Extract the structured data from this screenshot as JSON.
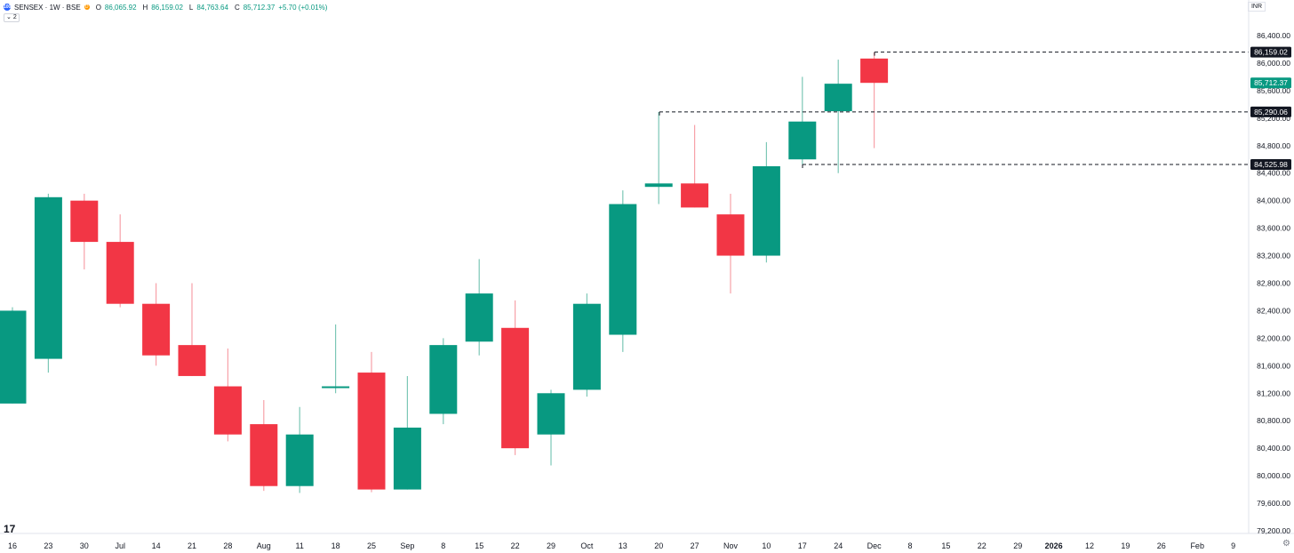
{
  "header": {
    "logo_text": "100",
    "symbol": "SENSEX · 1W · BSE",
    "badge": "D",
    "open_label": "O",
    "open": "86,065.92",
    "high_label": "H",
    "high": "86,159.02",
    "low_label": "L",
    "low": "84,763.64",
    "close_label": "C",
    "close": "85,712.37",
    "change": "+5.70 (+0.01%)",
    "indicator_count": "2",
    "currency": "INR"
  },
  "icons": [
    "tradingview-logo-icon",
    "settings-icon",
    "chevron-down-icon"
  ],
  "colors": {
    "up": "#089981",
    "down": "#f23645",
    "up_wick": "#7cc7b6",
    "down_wick": "#f7a1a8",
    "price_tag_dark": "#131722"
  },
  "chart_data": {
    "type": "candlestick",
    "title": "SENSEX · 1W · BSE",
    "ylim": [
      79200,
      86700
    ],
    "y_ticks": [
      "79,200.00",
      "79,600.00",
      "80,000.00",
      "80,400.00",
      "80,800.00",
      "81,200.00",
      "81,600.00",
      "82,000.00",
      "82,400.00",
      "82,800.00",
      "83,200.00",
      "83,600.00",
      "84,000.00",
      "84,400.00",
      "84,800.00",
      "85,200.00",
      "85,600.00",
      "86,000.00",
      "86,400.00"
    ],
    "x_ticks": [
      "16",
      "23",
      "30",
      "Jul",
      "14",
      "21",
      "28",
      "Aug",
      "11",
      "18",
      "25",
      "Sep",
      "8",
      "15",
      "22",
      "29",
      "Oct",
      "13",
      "20",
      "27",
      "Nov",
      "10",
      "17",
      "24",
      "Dec",
      "8",
      "15",
      "22",
      "29",
      "2026",
      "12",
      "19",
      "26",
      "Feb",
      "9"
    ],
    "candles": [
      {
        "o": 81050,
        "h": 82450,
        "l": 81050,
        "c": 82400
      },
      {
        "o": 81700,
        "h": 84100,
        "l": 81500,
        "c": 84050
      },
      {
        "o": 84000,
        "h": 84100,
        "l": 83000,
        "c": 83400
      },
      {
        "o": 83400,
        "h": 83800,
        "l": 82450,
        "c": 82500
      },
      {
        "o": 82500,
        "h": 82800,
        "l": 81600,
        "c": 81750
      },
      {
        "o": 81900,
        "h": 82800,
        "l": 81450,
        "c": 81450
      },
      {
        "o": 81300,
        "h": 81850,
        "l": 80500,
        "c": 80600
      },
      {
        "o": 80750,
        "h": 81100,
        "l": 79780,
        "c": 79850
      },
      {
        "o": 79850,
        "h": 81000,
        "l": 79750,
        "c": 80600
      },
      {
        "o": 81300,
        "h": 82200,
        "l": 81200,
        "c": 81300
      },
      {
        "o": 81500,
        "h": 81800,
        "l": 79760,
        "c": 79800
      },
      {
        "o": 79800,
        "h": 81450,
        "l": 79800,
        "c": 80700
      },
      {
        "o": 80900,
        "h": 82000,
        "l": 80750,
        "c": 81900
      },
      {
        "o": 81950,
        "h": 83150,
        "l": 81750,
        "c": 82650
      },
      {
        "o": 82150,
        "h": 82550,
        "l": 80300,
        "c": 80400
      },
      {
        "o": 80600,
        "h": 81250,
        "l": 80150,
        "c": 81200
      },
      {
        "o": 81250,
        "h": 82650,
        "l": 81150,
        "c": 82500
      },
      {
        "o": 82050,
        "h": 84150,
        "l": 81800,
        "c": 83950
      },
      {
        "o": 84200,
        "h": 85290.06,
        "l": 83950,
        "c": 84250
      },
      {
        "o": 84250,
        "h": 85100,
        "l": 83900,
        "c": 83900
      },
      {
        "o": 83800,
        "h": 84100,
        "l": 82650,
        "c": 83200
      },
      {
        "o": 83200,
        "h": 84850,
        "l": 83100,
        "c": 84500
      },
      {
        "o": 84600,
        "h": 85800,
        "l": 84525.98,
        "c": 85150
      },
      {
        "o": 85300,
        "h": 86050,
        "l": 84400,
        "c": 85700
      },
      {
        "o": 86065.92,
        "h": 86159.02,
        "l": 84763.64,
        "c": 85712.37
      }
    ],
    "price_lines": [
      {
        "value": 86159.02,
        "label": "86,159.02",
        "style": "dashed"
      },
      {
        "value": 85290.06,
        "label": "85,290.06",
        "style": "dashed"
      },
      {
        "value": 84525.98,
        "label": "84,525.98",
        "style": "dashed"
      }
    ],
    "last_price": {
      "value": 85712.37,
      "label": "85,712.37"
    },
    "grid": false
  }
}
